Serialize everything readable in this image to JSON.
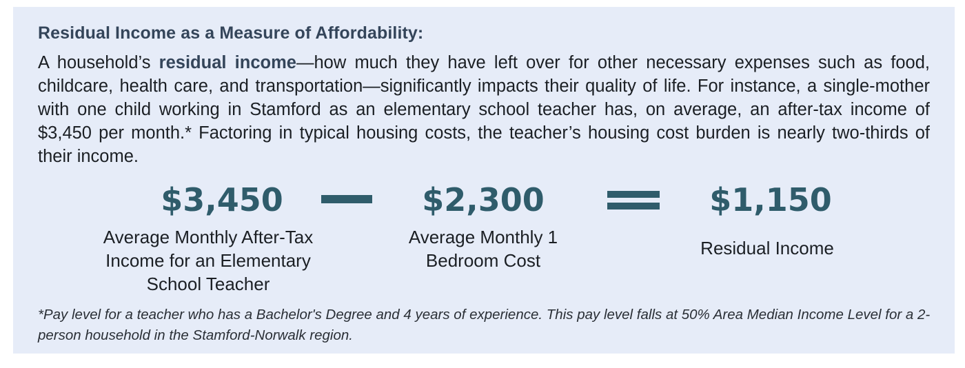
{
  "heading": "Residual Income as a Measure of Affordability:",
  "paragraph": {
    "prefix": "A household’s ",
    "bold": "residual income",
    "suffix": "—how much they have left over for other necessary expenses such as food, childcare, health care, and transportation—significantly impacts their quality of life. For instance, a single-mother with one child working in Stamford as an elementary school teacher has, on average, an after-tax income of $3,450 per month.* Factoring in typical housing costs, the teacher’s housing cost burden is nearly two-thirds of their income."
  },
  "equation": {
    "income": {
      "value": "$3,450",
      "label": "Average Monthly After-Tax Income for an Elementary School Teacher"
    },
    "cost": {
      "value": "$2,300",
      "label": "Average Monthly 1 Bedroom Cost"
    },
    "residual": {
      "value": "$1,150",
      "label": "Residual Income"
    },
    "operators": [
      "minus",
      "equals"
    ]
  },
  "footnote": "*Pay level for a teacher who has a Bachelor's Degree and 4 years of experience. This pay level falls at 50% Area Median Income Level for a 2-person household in the Stamford-Norwalk region.",
  "colors": {
    "panel": "#e6ecf8",
    "accent": "#2f5c6b",
    "heading": "#34455a"
  }
}
